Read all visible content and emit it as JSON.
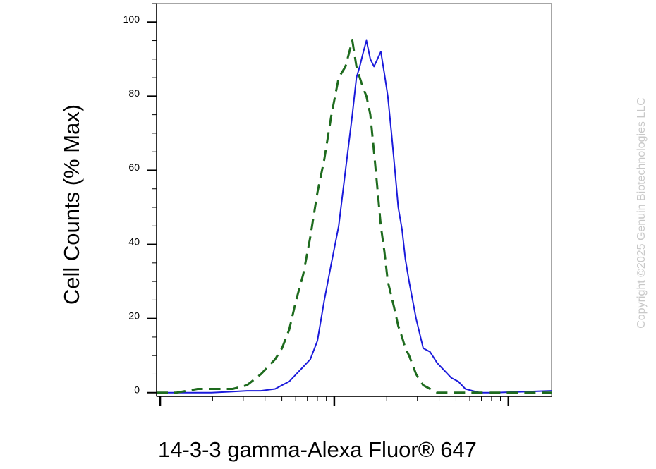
{
  "chart_data": {
    "type": "line",
    "y_label": "Cell Counts (% Max)",
    "x_label": "14-3-3 gamma-Alexa Fluor® 647",
    "annotation": "Copyright ©2025 Genuin Biotechnologies LLC",
    "xscale": "log",
    "xlim": [
      9.54,
      1770
    ],
    "ylim": [
      -1,
      105
    ],
    "yticks": [
      0,
      20,
      40,
      60,
      80,
      100
    ],
    "x": [
      9.54,
      12.4,
      16.4,
      19.7,
      26.1,
      31.5,
      37.9,
      45.7,
      50.1,
      55.1,
      60.4,
      66.4,
      72.8,
      80.0,
      87.7,
      96.3,
      106,
      116,
      127,
      134,
      140,
      147,
      153,
      161,
      169,
      177,
      185,
      194,
      203,
      213,
      223,
      233,
      245,
      256,
      269,
      295,
      324,
      355,
      390,
      428,
      470,
      516,
      566,
      683,
      822,
      1770
    ],
    "series": [
      {
        "color": "#1a1adb",
        "dash": false,
        "values": [
          0,
          0,
          0,
          0,
          0.3,
          0.5,
          0.5,
          1,
          2,
          3,
          5,
          7,
          9,
          14,
          25,
          35,
          45,
          60,
          75,
          85,
          88,
          92,
          95,
          90,
          88,
          90,
          92,
          86,
          80,
          70,
          60,
          50,
          44,
          36,
          30,
          20,
          12,
          11,
          8,
          6,
          4,
          3,
          1,
          0,
          0,
          0.5
        ]
      },
      {
        "color": "#1e6b1e",
        "dash": true,
        "values": [
          0,
          0,
          1,
          1,
          1,
          2,
          5,
          9,
          12,
          17,
          25,
          32,
          42,
          54,
          63,
          75,
          85,
          88,
          95,
          88,
          85,
          82,
          80,
          75,
          65,
          55,
          45,
          38,
          30,
          26,
          22,
          18,
          15,
          12,
          10,
          5,
          2,
          1,
          0,
          0,
          0,
          0,
          0,
          0,
          0,
          0
        ]
      }
    ]
  }
}
